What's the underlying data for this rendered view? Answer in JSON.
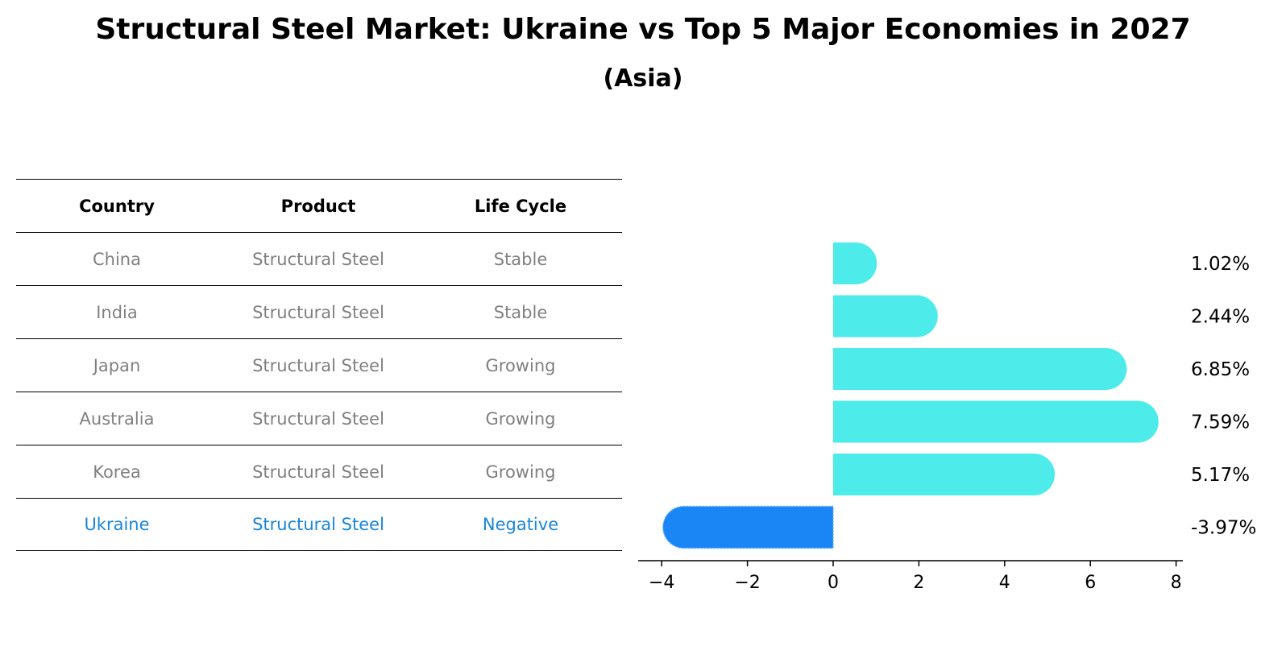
{
  "title": "Structural Steel Market: Ukraine vs Top 5 Major Economies in 2027",
  "subtitle": "(Asia)",
  "table": {
    "headers": [
      "Country",
      "Product",
      "Life Cycle"
    ],
    "rows": [
      {
        "country": "China",
        "product": "Structural Steel",
        "life_cycle": "Stable"
      },
      {
        "country": "India",
        "product": "Structural Steel",
        "life_cycle": "Stable"
      },
      {
        "country": "Japan",
        "product": "Structural Steel",
        "life_cycle": "Growing"
      },
      {
        "country": "Australia",
        "product": "Structural Steel",
        "life_cycle": "Growing"
      },
      {
        "country": "Korea",
        "product": "Structural Steel",
        "life_cycle": "Growing"
      },
      {
        "country": "Ukraine",
        "product": "Structural Steel",
        "life_cycle": "Negative"
      }
    ]
  },
  "colors": {
    "positive_bar": "#4deceb",
    "negative_bar": "#1a86f5",
    "highlight_text": "#1a86d8",
    "muted_text": "#808080"
  },
  "chart_data": {
    "type": "bar",
    "orientation": "horizontal",
    "categories": [
      "China",
      "India",
      "Japan",
      "Australia",
      "Korea",
      "Ukraine"
    ],
    "values": [
      1.02,
      2.44,
      6.85,
      7.59,
      5.17,
      -3.97
    ],
    "value_labels": [
      "1.02%",
      "2.44%",
      "6.85%",
      "7.59%",
      "5.17%",
      "-3.97%"
    ],
    "xlim": [
      -4.5,
      8.1
    ],
    "xticks": [
      -4,
      -2,
      0,
      2,
      4,
      6,
      8
    ],
    "xtick_labels": [
      "−4",
      "−2",
      "0",
      "2",
      "4",
      "6",
      "8"
    ],
    "xlabel": "",
    "ylabel": "",
    "grid": false
  }
}
